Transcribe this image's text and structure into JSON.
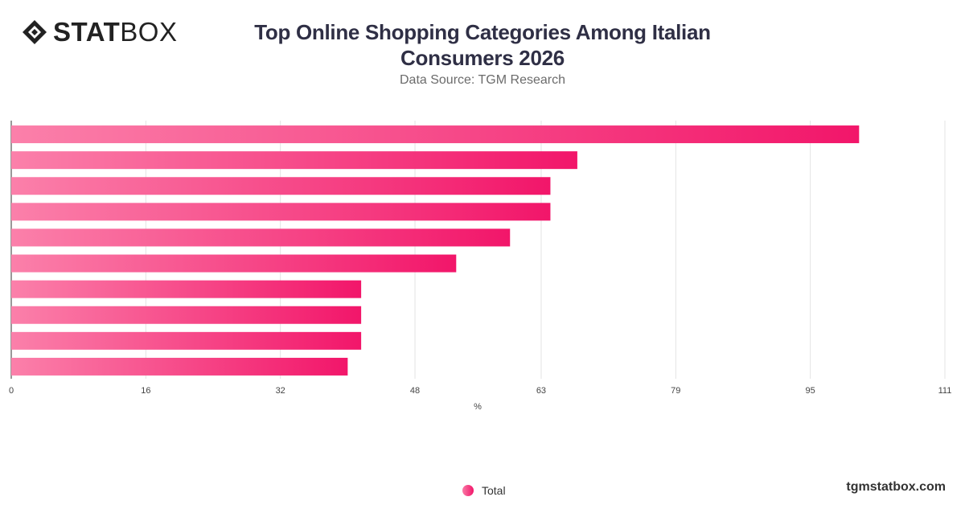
{
  "header": {
    "logo_bold": "STAT",
    "logo_light": "BOX",
    "title": "Top Online Shopping Categories Among Italian Consumers 2026",
    "subtitle": "Data Source: TGM Research"
  },
  "legend": {
    "label": "Total"
  },
  "footer": {
    "site": "tgmstatbox.com"
  },
  "colors": {
    "bar_start": "#fb80aa",
    "bar_end": "#f2166a",
    "grid": "#e3e3e3",
    "axis": "#333333"
  },
  "chart_data": {
    "type": "bar",
    "orientation": "horizontal",
    "categories": [
      "",
      "",
      "",
      "",
      "",
      "",
      "",
      "",
      "",
      ""
    ],
    "series": [
      {
        "name": "Total",
        "values": [
          100.8,
          67.3,
          64.1,
          64.1,
          59.3,
          52.9,
          41.6,
          41.6,
          41.6,
          40.0
        ]
      }
    ],
    "xlabel": "%",
    "xticks": [
      0,
      16,
      32,
      48,
      63,
      79,
      95,
      111
    ],
    "xlim": [
      0,
      111
    ],
    "grid": true,
    "legend_position": "bottom-center"
  }
}
